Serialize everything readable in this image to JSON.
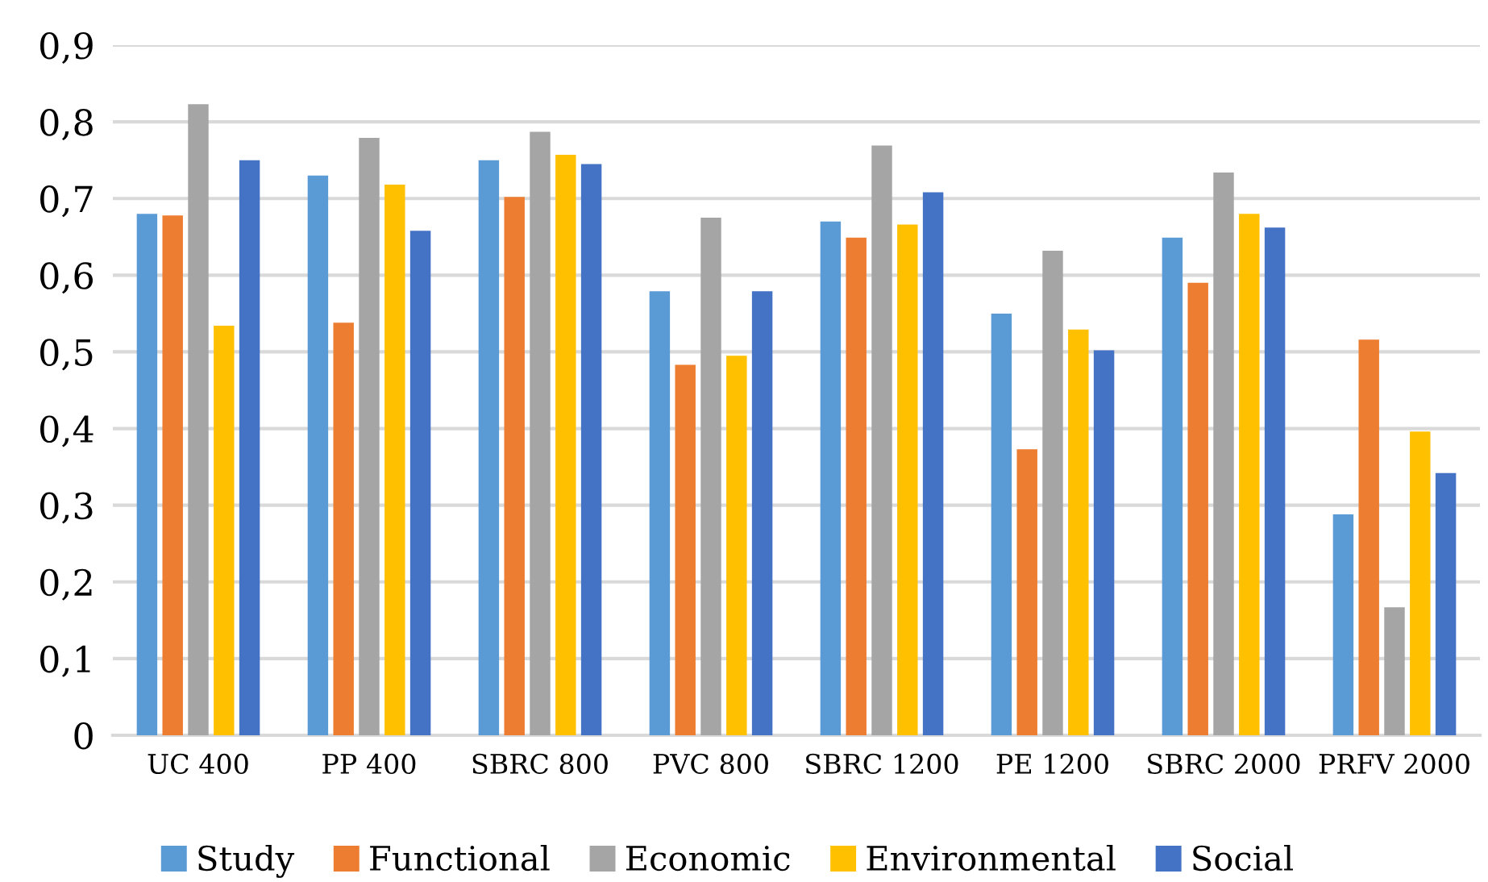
{
  "chart_data": {
    "type": "bar",
    "categories": [
      "UC 400",
      "PP 400",
      "SBRC 800",
      "PVC 800",
      "SBRC 1200",
      "PE 1200",
      "SBRC 2000",
      "PRFV 2000"
    ],
    "series": [
      {
        "name": "Study",
        "color": "#5b9bd5",
        "values": [
          0.68,
          0.73,
          0.75,
          0.579,
          0.67,
          0.55,
          0.649,
          0.288
        ]
      },
      {
        "name": "Functional",
        "color": "#ed7d31",
        "values": [
          0.678,
          0.538,
          0.702,
          0.483,
          0.649,
          0.373,
          0.59,
          0.516
        ]
      },
      {
        "name": "Economic",
        "color": "#a5a5a5",
        "values": [
          0.823,
          0.779,
          0.787,
          0.675,
          0.769,
          0.632,
          0.734,
          0.167
        ]
      },
      {
        "name": "Environmental",
        "color": "#ffc000",
        "values": [
          0.534,
          0.718,
          0.757,
          0.495,
          0.666,
          0.529,
          0.68,
          0.396
        ]
      },
      {
        "name": "Social",
        "color": "#4472c4",
        "values": [
          0.75,
          0.658,
          0.745,
          0.579,
          0.708,
          0.502,
          0.662,
          0.342
        ]
      }
    ],
    "ylim": [
      0,
      0.9
    ],
    "yticks": [
      0,
      {
        "value": 0.1,
        "label": "0,1"
      },
      {
        "value": 0.2,
        "label": "0,2"
      },
      {
        "value": 0.3,
        "label": "0,3"
      },
      {
        "value": 0.4,
        "label": "0,4"
      },
      {
        "value": 0.5,
        "label": "0,5"
      },
      {
        "value": 0.6,
        "label": "0,6"
      },
      {
        "value": 0.7,
        "label": "0,7"
      },
      {
        "value": 0.8,
        "label": "0,8"
      },
      {
        "value": 0.9,
        "label": "0,9"
      }
    ],
    "grid": "y",
    "legend": "bottom"
  }
}
